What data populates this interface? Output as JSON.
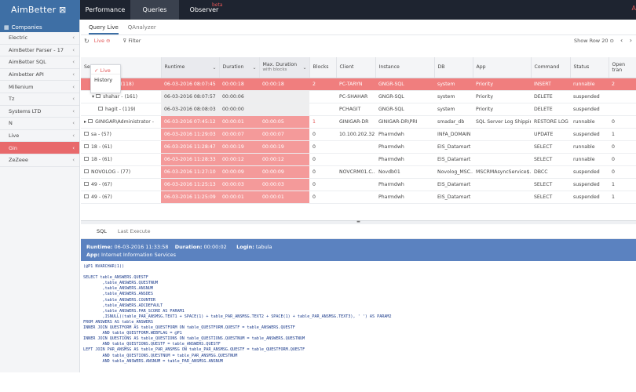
{
  "app": {
    "logo": "AimBetter",
    "user_initial": "A"
  },
  "nav": {
    "tabs": [
      "Performance",
      "Queries",
      "Observer"
    ],
    "active": "Queries",
    "badge": "beta"
  },
  "sidebar": {
    "header": "Companies",
    "items": [
      {
        "label": "Electric"
      },
      {
        "label": "AimBetter Parser - 17"
      },
      {
        "label": "AimBetter SQL"
      },
      {
        "label": "Aimbetter API"
      },
      {
        "label": "Millenium"
      },
      {
        "label": "Tz"
      },
      {
        "label": "Systems LTD"
      },
      {
        "label": "N"
      },
      {
        "label": "Live"
      },
      {
        "label": "Gin"
      },
      {
        "label": "ZeZeee"
      }
    ],
    "active_index": 9
  },
  "subtabs": {
    "live": "Query Live",
    "analyzer": "QAnalyzer"
  },
  "toolbar": {
    "live": "Live",
    "filter": "Filter",
    "show_row_label": "Show Row",
    "show_row_value": "20"
  },
  "dropdown": {
    "options": [
      "Live",
      "History"
    ],
    "selected": "Live"
  },
  "grid": {
    "columns": [
      {
        "label": "Ses"
      },
      {
        "label": "Runtime"
      },
      {
        "label": "Duration"
      },
      {
        "label": "Max. Duration",
        "sub": "with blocks"
      },
      {
        "label": "Blocks"
      },
      {
        "label": "Client"
      },
      {
        "label": "Instance"
      },
      {
        "label": "DB"
      },
      {
        "label": "App"
      },
      {
        "label": "Command"
      },
      {
        "label": "Status"
      },
      {
        "label": "Open tran"
      }
    ],
    "rows": [
      {
        "ses": "taryn - (118)",
        "runtime": "06-03-2016 08:07:45",
        "duration": "00:00:18",
        "max": "00:00:18",
        "blocks": "2",
        "client": "PC-TARYN",
        "instance": "GNGR-SQL",
        "db": "system",
        "app": "Priority",
        "command": "INSERT",
        "status": "runnable",
        "open": "2"
      },
      {
        "ses": "shahar - (161)",
        "runtime": "06-03-2016 08:07:57",
        "duration": "00:00:06",
        "max": "",
        "blocks": "",
        "client": "PC-SHAHAR",
        "instance": "GNGR-SQL",
        "db": "system",
        "app": "Priority",
        "command": "DELETE",
        "status": "suspended",
        "open": ""
      },
      {
        "ses": "hagit - (119)",
        "runtime": "06-03-2016 08:08:03",
        "duration": "00:00:00",
        "max": "",
        "blocks": "",
        "client": "PCHAGIT",
        "instance": "GNGR-SQL",
        "db": "system",
        "app": "Priority",
        "command": "DELETE",
        "status": "suspended",
        "open": ""
      },
      {
        "ses": "GINIGAR\\Administrator -",
        "runtime": "06-03-2016 07:45:12",
        "duration": "00:00:01",
        "max": "00:00:05",
        "blocks": "1",
        "client": "GINIGAR-DR",
        "instance": "GINIGAR-DR\\PRI",
        "db": "smadar_db",
        "app": "SQL Server Log Shipping",
        "command": "RESTORE LOG",
        "status": "runnable",
        "open": "0"
      },
      {
        "ses": "sa - (57)",
        "runtime": "06-03-2016 11:29:03",
        "duration": "00:00:07",
        "max": "00:00:07",
        "blocks": "0",
        "client": "10.100.202.32",
        "instance": "Pharmdwh",
        "db": "INFA_DOMAIN",
        "app": "",
        "command": "UPDATE",
        "status": "suspended",
        "open": "1"
      },
      {
        "ses": "18 - (61)",
        "runtime": "06-03-2016 11:28:47",
        "duration": "00:00:19",
        "max": "00:00:19",
        "blocks": "0",
        "client": "",
        "instance": "Pharmdwh",
        "db": "EIS_Datamart",
        "app": "",
        "command": "SELECT",
        "status": "runnable",
        "open": "0"
      },
      {
        "ses": "18 - (61)",
        "runtime": "06-03-2016 11:28:33",
        "duration": "00:00:12",
        "max": "00:00:12",
        "blocks": "0",
        "client": "",
        "instance": "Pharmdwh",
        "db": "EIS_Datamart",
        "app": "",
        "command": "SELECT",
        "status": "runnable",
        "open": "0"
      },
      {
        "ses": "NOVOLOG - (77)",
        "runtime": "06-03-2016 11:27:10",
        "duration": "00:00:09",
        "max": "00:00:09",
        "blocks": "0",
        "client": "NOVCRM01.C...",
        "instance": "Novdb01",
        "db": "Novolog_MSC...",
        "app": "MSCRMAsyncService$...",
        "command": "DBCC",
        "status": "suspended",
        "open": "0"
      },
      {
        "ses": "49 - (67)",
        "runtime": "06-03-2016 11:25:13",
        "duration": "00:00:03",
        "max": "00:00:03",
        "blocks": "0",
        "client": "",
        "instance": "Pharmdwh",
        "db": "EIS_Datamart",
        "app": "",
        "command": "SELECT",
        "status": "suspended",
        "open": "1"
      },
      {
        "ses": "49 - (67)",
        "runtime": "06-03-2016 11:25:09",
        "duration": "00:00:01",
        "max": "00:00:01",
        "blocks": "0",
        "client": "",
        "instance": "Pharmdwh",
        "db": "EIS_Datamart",
        "app": "",
        "command": "SELECT",
        "status": "suspended",
        "open": "1"
      }
    ]
  },
  "bottom": {
    "tabs": [
      "SQL",
      "Last Execute"
    ],
    "runtime_label": "Runtime:",
    "runtime": "06-03-2016 11:33:58",
    "duration_label": "Duration:",
    "duration": "00:00:02",
    "login_label": "Login:",
    "login": "tabula",
    "app_label": "App:",
    "app": "Internet Information Services",
    "sql": "(@P1 NVARCHAR(1))\n\nSELECT table_ANSWERS.QUESTF\n        ,table_ANSWERS.QUESTNUM\n        ,table_ANSWERS.ANSNUM\n        ,table_ANSWERS.ANSDES\n        ,table_ANSWERS.COUNTER\n        ,table_ANSWERS.ADCDEFAULT\n        ,table_ANSWERS.PAR_SCORE AS PARAM1\n        ,ISNULL((table_PAR_ANSMSG.TEXT1 + SPACE(1) + table_PAR_ANSMSG.TEXT2 + SPACE(1) + table_PAR_ANSMSG.TEXT3), ' ') AS PARAM2\nFROM ANSWERS AS table_ANSWERS\nINNER JOIN QUESTFORM AS table_QUESTFORM ON table_QUESTFORM.QUESTF = table_ANSWERS.QUESTF\n        AND table_QUESTFORM.WEBFLAG = @P1\nINNER JOIN QUESTIONS AS table_QUESTIONS ON table_QUESTIONS.QUESTNUM = table_ANSWERS.QUESTNUM\n        AND table_QUESTIONS.QUESTF = table_ANSWERS.QUESTF\nLEFT JOIN PAR_ANSMSG AS table_PAR_ANSMSG ON table_PAR_ANSMSG.QUESTF = table_QUESTFORM.QUESTF\n        AND table_QUESTIONS.QUESTNUM = table_PAR_ANSMSG.QUESTNUM\n        AND table_ANSWERS.ANSNUM = table_PAR_ANSMSG.ANSNUM"
  },
  "colors": {
    "accent": "#3e6fa5",
    "highlight": "#f07e7e",
    "topbar": "#1e2430"
  }
}
